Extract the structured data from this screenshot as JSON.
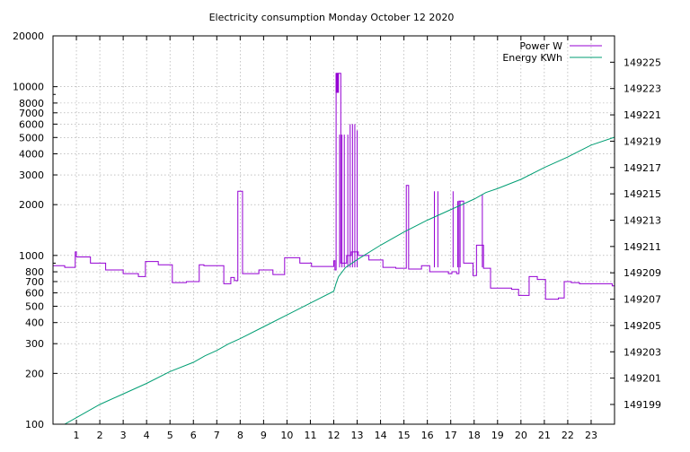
{
  "chart_data": {
    "type": "line",
    "title": "Electricity consumption Monday October 12 2020",
    "xlabel": "",
    "ylabel": "",
    "x_range": [
      0,
      24
    ],
    "x_ticks": [
      1,
      2,
      3,
      4,
      5,
      6,
      7,
      8,
      9,
      10,
      11,
      12,
      13,
      14,
      15,
      16,
      17,
      18,
      19,
      20,
      21,
      22,
      23
    ],
    "y_scale": "log",
    "y_range": [
      100,
      20000
    ],
    "y_ticks": [
      100,
      200,
      300,
      400,
      500,
      600,
      700,
      800,
      1000,
      2000,
      3000,
      4000,
      5000,
      6000,
      7000,
      8000,
      10000,
      20000
    ],
    "y2_range": [
      149197.5,
      149227
    ],
    "y2_ticks": [
      149199,
      149201,
      149203,
      149205,
      149207,
      149209,
      149211,
      149213,
      149215,
      149217,
      149219,
      149221,
      149223,
      149225
    ],
    "grid": true,
    "legend_position": "top-right",
    "series": [
      {
        "name": "Power W",
        "axis": "left",
        "color": "#9400d3",
        "step": true,
        "x": [
          0.0,
          0.5,
          0.95,
          1.0,
          1.6,
          2.25,
          3.0,
          3.65,
          3.95,
          4.5,
          5.1,
          5.7,
          6.25,
          6.45,
          7.3,
          7.6,
          7.75,
          7.9,
          8.1,
          8.8,
          9.4,
          9.9,
          10.55,
          11.05,
          12.0,
          12.05,
          12.1,
          12.3,
          12.55,
          12.75,
          13.05,
          13.5,
          14.1,
          14.65,
          14.9,
          15.1,
          15.2,
          15.75,
          16.1,
          16.3,
          16.9,
          17.05,
          17.25,
          17.35,
          17.55,
          17.95,
          18.1,
          18.4,
          18.7,
          19.6,
          19.9,
          20.35,
          20.7,
          21.05,
          21.6,
          21.85,
          22.15,
          22.5,
          23.5,
          23.9
        ],
        "y": [
          870,
          850,
          1050,
          980,
          900,
          820,
          780,
          750,
          920,
          880,
          690,
          700,
          880,
          870,
          680,
          740,
          710,
          2400,
          780,
          820,
          770,
          970,
          900,
          860,
          930,
          820,
          12000,
          900,
          1000,
          1050,
          1000,
          940,
          850,
          840,
          840,
          2600,
          830,
          870,
          800,
          800,
          780,
          800,
          780,
          2100,
          900,
          760,
          1150,
          840,
          640,
          630,
          580,
          750,
          720,
          550,
          560,
          700,
          690,
          680,
          680,
          660
        ]
      },
      {
        "name": "Energy KWh",
        "axis": "right",
        "color": "#009e73",
        "step": false,
        "x": [
          0.5,
          1,
          2,
          3,
          4,
          5,
          6,
          6.5,
          7,
          7.5,
          8,
          9,
          10,
          11,
          12,
          12.1,
          12.2,
          12.5,
          13,
          14,
          15,
          16,
          17,
          18,
          18.5,
          19,
          20,
          21,
          22,
          23,
          24
        ],
        "y": [
          149197.5,
          149198,
          149199,
          149199.8,
          149200.6,
          149201.5,
          149202.2,
          149202.7,
          149203.1,
          149203.6,
          149204,
          149204.9,
          149205.8,
          149206.7,
          149207.6,
          149208.2,
          149208.7,
          149209.4,
          149210,
          149211.1,
          149212.1,
          149213,
          149213.8,
          149214.6,
          149215.1,
          149215.4,
          149216.1,
          149217,
          149217.8,
          149218.7,
          149219.3
        ]
      }
    ]
  }
}
